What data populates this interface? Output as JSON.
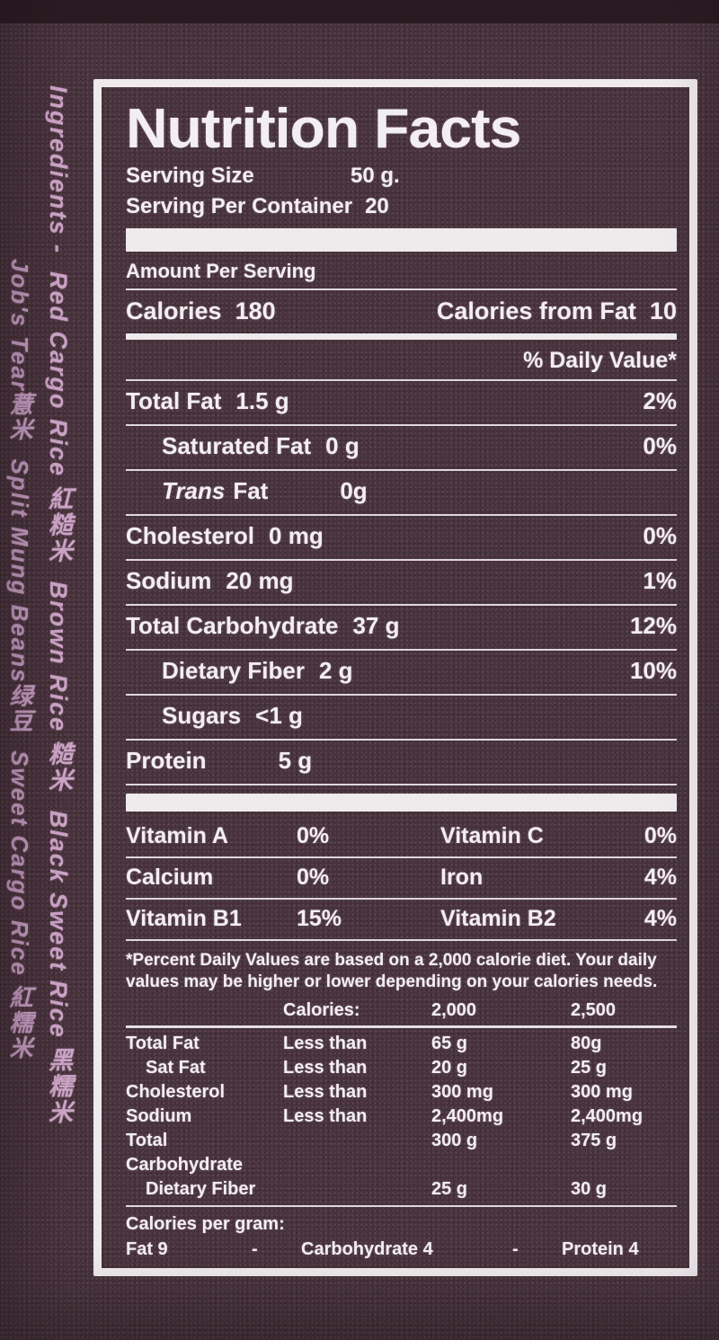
{
  "background": {
    "base": "#47323b",
    "top_band": "#261a20"
  },
  "ingredients_text": {
    "color": "#cfa6c9",
    "line1": "Ingredients -  Red Cargo Rice 紅糙米  Brown Rice 糙米  Black Sweet Rice 黑糯米",
    "line2": "Job's Tear薏米  Split Mung Beans绿豆  Sweet Cargo Rice 紅糯米"
  },
  "label": {
    "title": "Nutrition Facts",
    "serving": {
      "size_label": "Serving Size",
      "size_value": "50 g.",
      "per_container_label": "Serving Per Container",
      "per_container_value": "20"
    },
    "amount_per_serving": "Amount Per Serving",
    "calories": {
      "label": "Calories",
      "value": "180",
      "from_fat_label": "Calories from Fat",
      "from_fat_value": "10"
    },
    "daily_value_header": "% Daily Value*",
    "nutrients": [
      {
        "prefix_italic": "",
        "label": "Total Fat",
        "amount": "1.5 g",
        "dv": "2%"
      },
      {
        "prefix_italic": "",
        "label": "Saturated Fat",
        "amount": "0 g",
        "dv": "0%"
      },
      {
        "prefix_italic": "Trans",
        "label": "Fat",
        "amount": "0g",
        "dv": ""
      },
      {
        "prefix_italic": "",
        "label": "Cholesterol",
        "amount": "0 mg",
        "dv": "0%"
      },
      {
        "prefix_italic": "",
        "label": "Sodium",
        "amount": "20 mg",
        "dv": "1%"
      },
      {
        "prefix_italic": "",
        "label": "Total Carbohydrate",
        "amount": "37 g",
        "dv": "12%"
      },
      {
        "prefix_italic": "",
        "label": "Dietary Fiber",
        "amount": "2 g",
        "dv": "10%"
      },
      {
        "prefix_italic": "",
        "label": "Sugars",
        "amount": "<1 g",
        "dv": ""
      },
      {
        "prefix_italic": "",
        "label": "Protein",
        "amount": "5 g",
        "dv": ""
      }
    ],
    "vitamins": [
      {
        "l_label": "Vitamin A",
        "l_value": "0%",
        "r_label": "Vitamin C",
        "r_value": "0%"
      },
      {
        "l_label": "Calcium",
        "l_value": "0%",
        "r_label": "Iron",
        "r_value": "4%"
      },
      {
        "l_label": "Vitamin B1",
        "l_value": "15%",
        "r_label": "Vitamin B2",
        "r_value": "4%"
      }
    ],
    "footnote": "*Percent Daily Values are based on a 2,000 calorie diet. Your daily values may be higher or lower depending on your calories needs.",
    "dv_table": {
      "header": {
        "calories_label": "Calories:",
        "col_2000": "2,000",
        "col_2500": "2,500"
      },
      "rows": [
        {
          "label": "Total Fat",
          "qualifier": "Less than",
          "v2000": "65 g",
          "v2500": "80g"
        },
        {
          "label": "Sat Fat",
          "qualifier": "Less than",
          "v2000": "20 g",
          "v2500": "25 g"
        },
        {
          "label": "Cholesterol",
          "qualifier": "Less than",
          "v2000": "300 mg",
          "v2500": "300 mg"
        },
        {
          "label": "Sodium",
          "qualifier": "Less than",
          "v2000": "2,400mg",
          "v2500": "2,400mg"
        },
        {
          "label": "Total Carbohydrate",
          "qualifier": "",
          "v2000": "300 g",
          "v2500": "375 g"
        },
        {
          "label": "Dietary Fiber",
          "qualifier": "",
          "v2000": "25 g",
          "v2500": "30 g"
        }
      ]
    },
    "calories_per_gram": {
      "label": "Calories per gram:",
      "fat": "Fat 9",
      "sep1": "-",
      "carb": "Carbohydrate 4",
      "sep2": "-",
      "protein": "Protein 4"
    }
  }
}
